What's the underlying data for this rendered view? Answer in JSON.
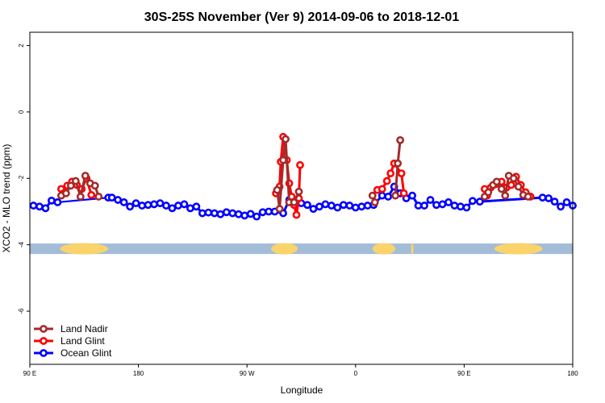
{
  "chart_data": {
    "type": "scatter",
    "title": "30S-25S November (Ver 9)   2014-09-06 to 2018-12-01",
    "xlabel": "Longitude",
    "ylabel": "XCO2 - MLO trend (ppm)",
    "x_ticks": [
      {
        "value": 90,
        "label": "90 E"
      },
      {
        "value": 180,
        "label": "180"
      },
      {
        "value": 270,
        "label": "90 W"
      },
      {
        "value": 360,
        "label": "0"
      },
      {
        "value": 450,
        "label": "90 E"
      },
      {
        "value": 540,
        "label": "180"
      }
    ],
    "y_ticks": [
      2,
      0,
      -2,
      -4,
      -6
    ],
    "xlim": [
      90,
      540
    ],
    "ylim": [
      -7.6,
      2.4
    ],
    "legend": {
      "position": "bottom-left",
      "entries": [
        {
          "label": "Land Nadir",
          "color": "#a52a2a"
        },
        {
          "label": "Land Glint",
          "color": "#ff0000"
        },
        {
          "label": "Ocean Glint",
          "color": "#0000ff"
        }
      ]
    },
    "land_mask": {
      "y": -4.12,
      "ocean_color": "#a3bcd8",
      "land_color": "#fad36a",
      "land_segments": [
        [
          115,
          155
        ],
        [
          290,
          312
        ],
        [
          374,
          393
        ],
        [
          406,
          408
        ],
        [
          475,
          515
        ]
      ]
    },
    "series": [
      {
        "name": "Ocean Glint",
        "color": "#0000ff",
        "points": [
          [
            93,
            -2.82
          ],
          [
            98,
            -2.85
          ],
          [
            103,
            -2.9
          ],
          [
            108,
            -2.67
          ],
          [
            113,
            -2.72
          ],
          [
            155,
            -2.58
          ],
          [
            158,
            -2.58
          ],
          [
            163,
            -2.65
          ],
          [
            168,
            -2.72
          ],
          [
            173,
            -2.85
          ],
          [
            178,
            -2.75
          ],
          [
            183,
            -2.82
          ],
          [
            188,
            -2.8
          ],
          [
            193,
            -2.78
          ],
          [
            198,
            -2.75
          ],
          [
            203,
            -2.82
          ],
          [
            208,
            -2.9
          ],
          [
            213,
            -2.82
          ],
          [
            218,
            -2.78
          ],
          [
            223,
            -2.9
          ],
          [
            228,
            -2.85
          ],
          [
            233,
            -3.05
          ],
          [
            238,
            -3.03
          ],
          [
            243,
            -3.05
          ],
          [
            248,
            -3.08
          ],
          [
            253,
            -3.02
          ],
          [
            258,
            -3.05
          ],
          [
            263,
            -3.08
          ],
          [
            268,
            -3.12
          ],
          [
            273,
            -3.07
          ],
          [
            278,
            -3.15
          ],
          [
            283,
            -3.02
          ],
          [
            288,
            -3.0
          ],
          [
            293,
            -3.0
          ],
          [
            300,
            -3.05
          ],
          [
            305,
            -2.65
          ],
          [
            310,
            -2.72
          ],
          [
            315,
            -2.75
          ],
          [
            320,
            -2.8
          ],
          [
            325,
            -2.92
          ],
          [
            330,
            -2.85
          ],
          [
            335,
            -2.78
          ],
          [
            340,
            -2.82
          ],
          [
            345,
            -2.88
          ],
          [
            350,
            -2.8
          ],
          [
            355,
            -2.82
          ],
          [
            360,
            -2.88
          ],
          [
            365,
            -2.85
          ],
          [
            370,
            -2.82
          ],
          [
            375,
            -2.8
          ],
          [
            382,
            -2.52
          ],
          [
            387,
            -2.55
          ],
          [
            392,
            -2.25
          ],
          [
            397,
            -2.45
          ],
          [
            402,
            -2.6
          ],
          [
            407,
            -2.52
          ],
          [
            412,
            -2.82
          ],
          [
            417,
            -2.82
          ],
          [
            422,
            -2.65
          ],
          [
            427,
            -2.8
          ],
          [
            432,
            -2.78
          ],
          [
            437,
            -2.72
          ],
          [
            442,
            -2.82
          ],
          [
            447,
            -2.85
          ],
          [
            452,
            -2.88
          ],
          [
            457,
            -2.68
          ],
          [
            463,
            -2.7
          ],
          [
            515,
            -2.58
          ],
          [
            520,
            -2.6
          ],
          [
            525,
            -2.7
          ],
          [
            530,
            -2.85
          ],
          [
            535,
            -2.72
          ],
          [
            540,
            -2.82
          ]
        ],
        "segments": [
          [
            0,
            4
          ],
          [
            5,
            67
          ],
          [
            68,
            73
          ]
        ],
        "bridge": [
          [
            113,
            -2.72
          ],
          [
            155,
            -2.58
          ]
        ]
      },
      {
        "name": "Land Glint",
        "color": "#ff0000",
        "points": [
          [
            116,
            -2.32
          ],
          [
            118,
            -2.45
          ],
          [
            121,
            -2.22
          ],
          [
            125,
            -2.1
          ],
          [
            129,
            -2.2
          ],
          [
            133,
            -2.32
          ],
          [
            137,
            -2.0
          ],
          [
            141,
            -2.5
          ],
          [
            294,
            -2.45
          ],
          [
            296,
            -2.35
          ],
          [
            297,
            -2.25
          ],
          [
            298,
            -1.5
          ],
          [
            300,
            -0.75
          ],
          [
            303,
            -1.45
          ],
          [
            305,
            -2.15
          ],
          [
            307,
            -2.55
          ],
          [
            309,
            -2.8
          ],
          [
            311,
            -3.1
          ],
          [
            313,
            -2.6
          ],
          [
            314,
            -1.6
          ],
          [
            378,
            -2.35
          ],
          [
            382,
            -2.32
          ],
          [
            386,
            -2.08
          ],
          [
            389,
            -1.85
          ],
          [
            392,
            -1.55
          ],
          [
            398,
            -1.85
          ],
          [
            400,
            -2.45
          ],
          [
            467,
            -2.32
          ],
          [
            469,
            -2.52
          ],
          [
            472,
            -2.28
          ],
          [
            476,
            -2.18
          ],
          [
            481,
            -2.1
          ],
          [
            485,
            -2.28
          ],
          [
            489,
            -2.2
          ],
          [
            493,
            -1.95
          ],
          [
            497,
            -2.2
          ],
          [
            501,
            -2.42
          ],
          [
            505,
            -2.55
          ]
        ],
        "segments": [
          [
            0,
            7
          ],
          [
            8,
            19
          ],
          [
            20,
            26
          ],
          [
            27,
            37
          ]
        ]
      },
      {
        "name": "Land Nadir",
        "color": "#a52a2a",
        "points": [
          [
            116,
            -2.52
          ],
          [
            120,
            -2.45
          ],
          [
            124,
            -2.22
          ],
          [
            128,
            -2.08
          ],
          [
            132,
            -2.55
          ],
          [
            136,
            -1.92
          ],
          [
            140,
            -2.15
          ],
          [
            144,
            -2.22
          ],
          [
            147,
            -2.55
          ],
          [
            295,
            -2.35
          ],
          [
            297,
            -2.92
          ],
          [
            300,
            -1.45
          ],
          [
            302,
            -0.82
          ],
          [
            305,
            -2.72
          ],
          [
            309,
            -2.72
          ],
          [
            313,
            -2.4
          ],
          [
            374,
            -2.52
          ],
          [
            376,
            -2.72
          ],
          [
            393,
            -2.52
          ],
          [
            395,
            -1.55
          ],
          [
            397,
            -0.85
          ],
          [
            467,
            -2.55
          ],
          [
            470,
            -2.42
          ],
          [
            474,
            -2.2
          ],
          [
            477,
            -2.1
          ],
          [
            481,
            -2.32
          ],
          [
            484,
            -2.52
          ],
          [
            487,
            -1.92
          ],
          [
            491,
            -2.0
          ],
          [
            495,
            -2.25
          ],
          [
            499,
            -2.5
          ],
          [
            503,
            -2.55
          ]
        ],
        "segments": [
          [
            0,
            8
          ],
          [
            9,
            15
          ],
          [
            16,
            17
          ],
          [
            18,
            20
          ],
          [
            21,
            31
          ]
        ]
      }
    ]
  }
}
